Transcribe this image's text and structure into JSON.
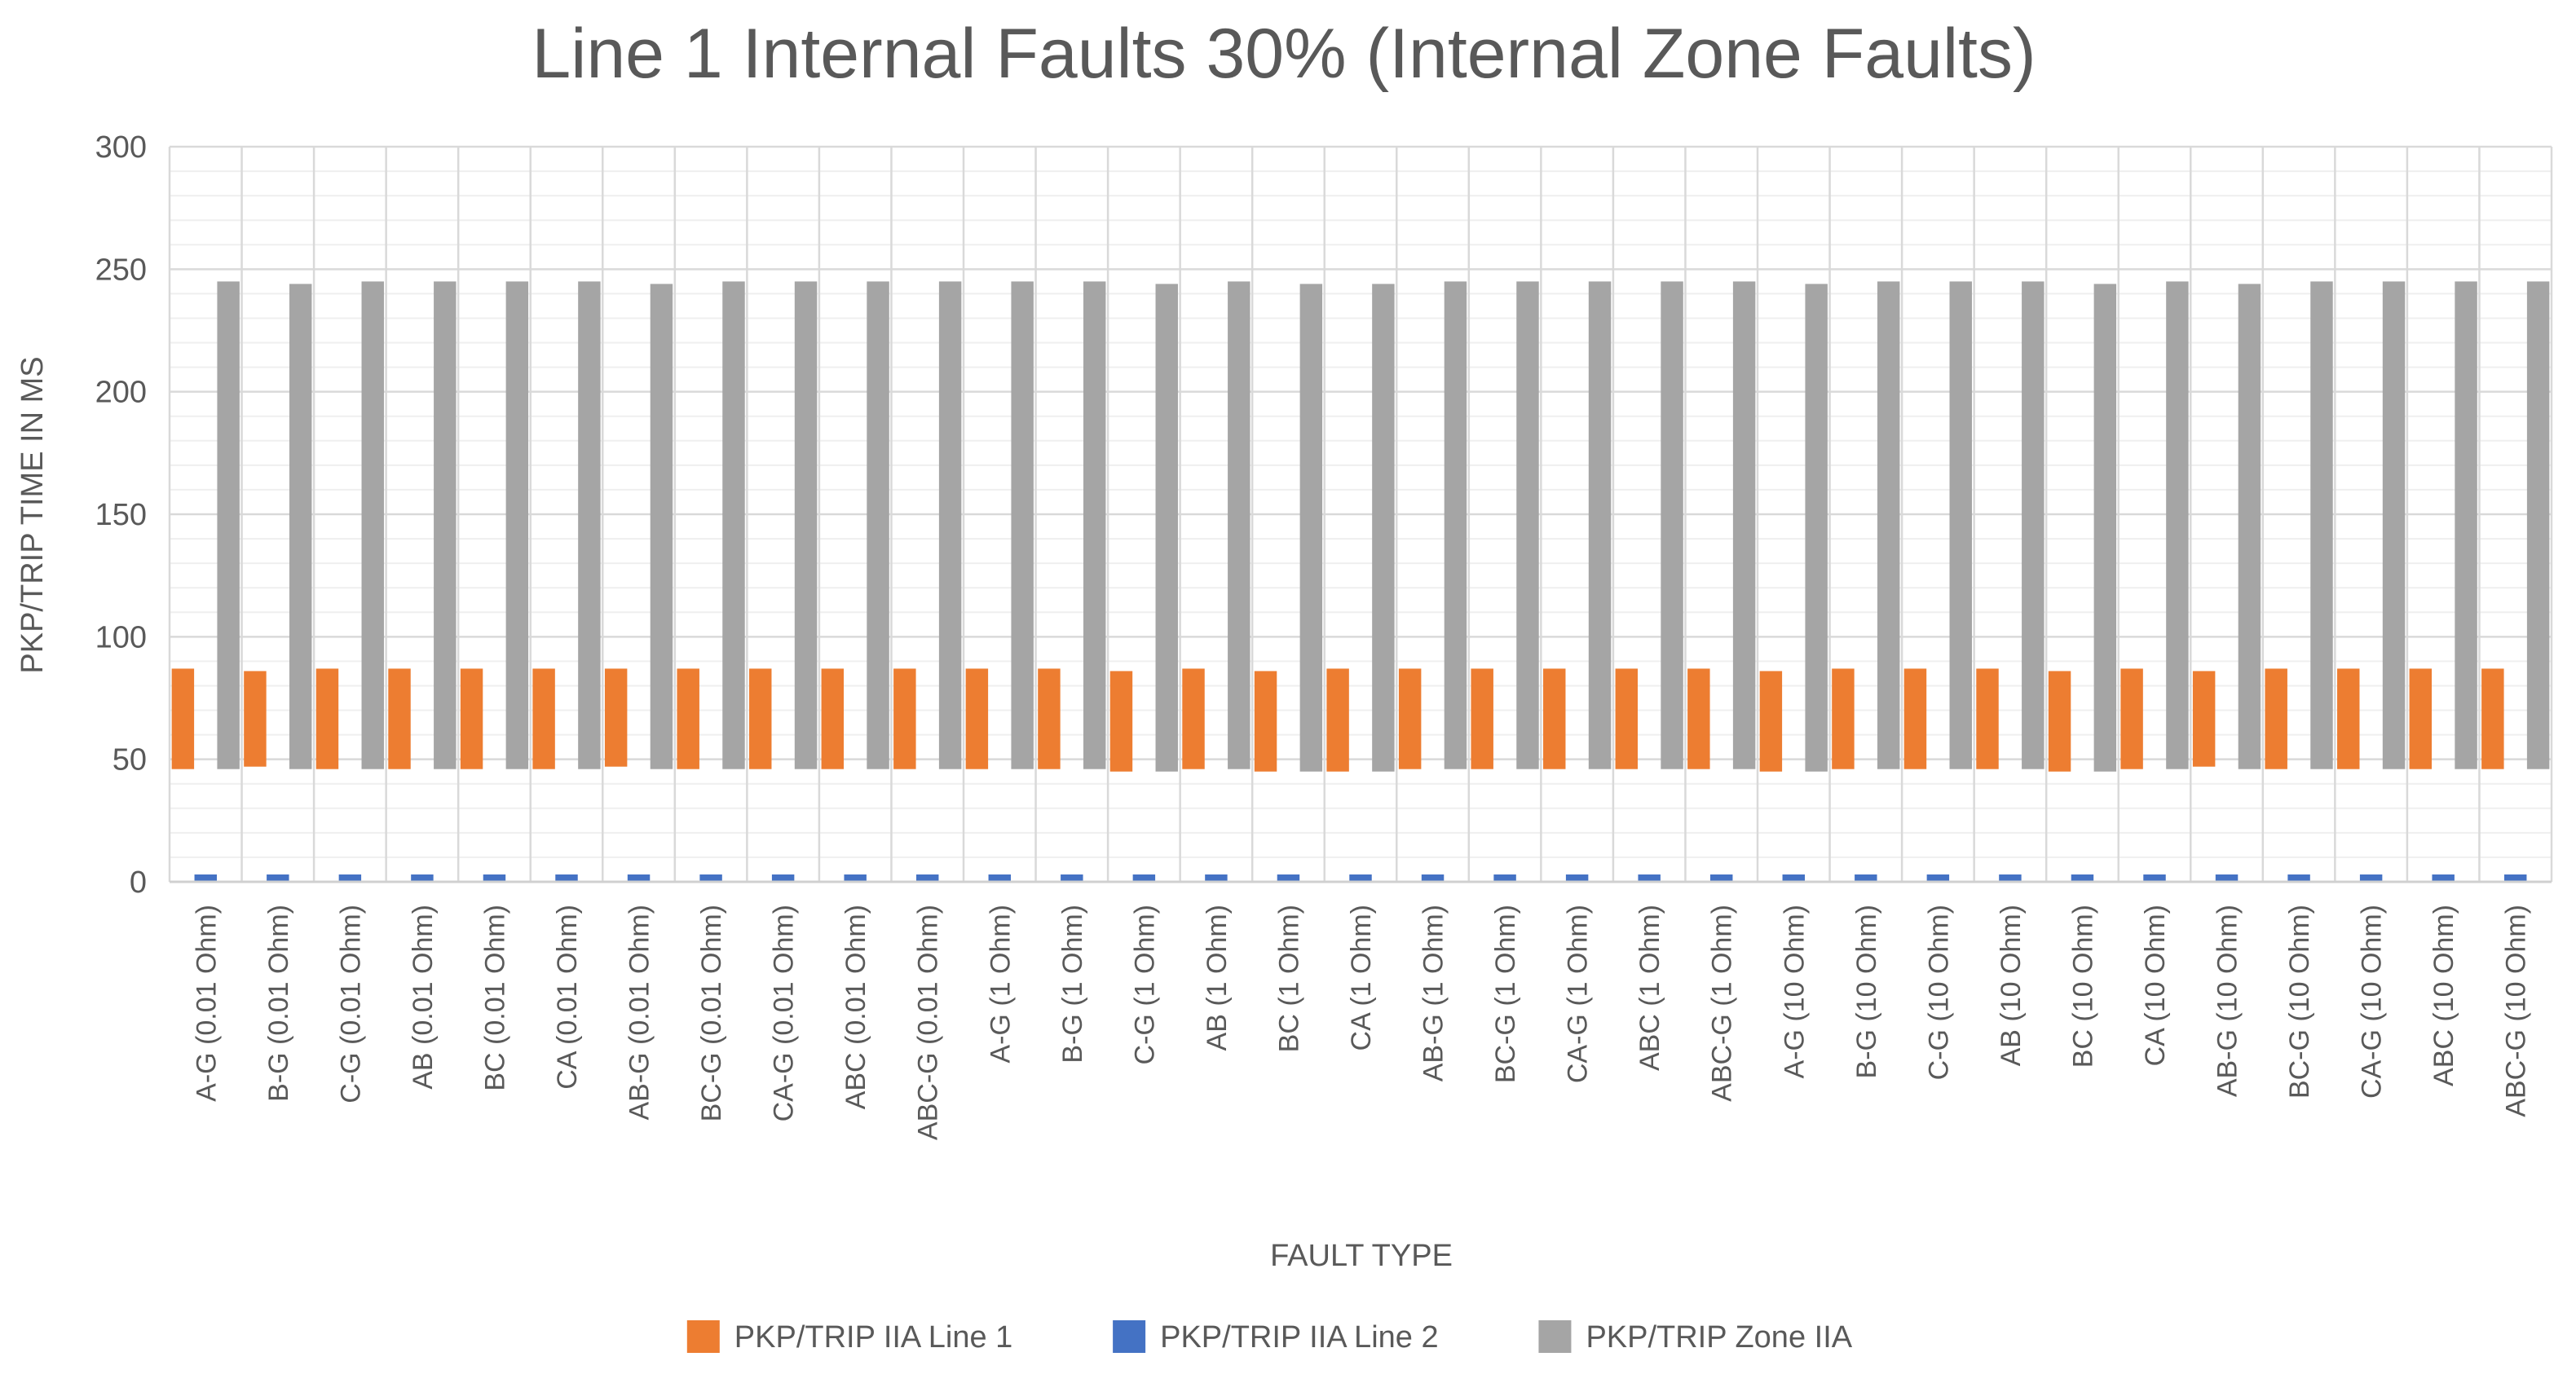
{
  "chart_data": {
    "type": "bar",
    "title": "Line 1 Internal Faults 30% (Internal Zone Faults)",
    "xlabel": "FAULT TYPE",
    "ylabel": "PKP/TRIP TIME IN MS",
    "ylim": [
      0,
      300
    ],
    "yticks": [
      0,
      50,
      100,
      150,
      200,
      250,
      300
    ],
    "grid": true,
    "legend_position": "bottom",
    "categories": [
      "A-G (0.01 Ohm)",
      "B-G (0.01 Ohm)",
      "C-G (0.01 Ohm)",
      "AB (0.01 Ohm)",
      "BC (0.01 Ohm)",
      "CA (0.01 Ohm)",
      "AB-G (0.01 Ohm)",
      "BC-G (0.01 Ohm)",
      "CA-G (0.01 Ohm)",
      "ABC (0.01 Ohm)",
      "ABC-G (0.01 Ohm)",
      "A-G (1 Ohm)",
      "B-G (1 Ohm)",
      "C-G (1 Ohm)",
      "AB (1 Ohm)",
      "BC (1 Ohm)",
      "CA (1 Ohm)",
      "AB-G (1 Ohm)",
      "BC-G (1 Ohm)",
      "CA-G (1 Ohm)",
      "ABC (1 Ohm)",
      "ABC-G (1 Ohm)",
      "A-G (10 Ohm)",
      "B-G (10 Ohm)",
      "C-G (10 Ohm)",
      "AB (10 Ohm)",
      "BC (10 Ohm)",
      "CA (10 Ohm)",
      "AB-G (10 Ohm)",
      "BC-G (10 Ohm)",
      "CA-G (10 Ohm)",
      "ABC (10 Ohm)",
      "ABC-G (10 Ohm)"
    ],
    "series": [
      {
        "name": "PKP/TRIP IIA Line 1",
        "color": "#ED7D31",
        "low": [
          46,
          47,
          46,
          46,
          46,
          46,
          47,
          46,
          46,
          46,
          46,
          46,
          46,
          45,
          46,
          45,
          45,
          46,
          46,
          46,
          46,
          46,
          45,
          46,
          46,
          46,
          45,
          46,
          47,
          46,
          46,
          46,
          46
        ],
        "high": [
          87,
          86,
          87,
          87,
          87,
          87,
          87,
          87,
          87,
          87,
          87,
          87,
          87,
          86,
          87,
          86,
          87,
          87,
          87,
          87,
          87,
          87,
          86,
          87,
          87,
          87,
          86,
          87,
          86,
          87,
          87,
          87,
          87
        ]
      },
      {
        "name": "PKP/TRIP IIA Line 2",
        "color": "#4472C4",
        "values": [
          3,
          3,
          3,
          3,
          3,
          3,
          3,
          3,
          3,
          3,
          3,
          3,
          3,
          3,
          3,
          3,
          3,
          3,
          3,
          3,
          3,
          3,
          3,
          3,
          3,
          3,
          3,
          3,
          3,
          3,
          3,
          3,
          3
        ]
      },
      {
        "name": "PKP/TRIP Zone IIA",
        "color": "#A5A5A5",
        "low": [
          46,
          46,
          46,
          46,
          46,
          46,
          46,
          46,
          46,
          46,
          46,
          46,
          46,
          45,
          46,
          45,
          45,
          46,
          46,
          46,
          46,
          46,
          45,
          46,
          46,
          46,
          45,
          46,
          46,
          46,
          46,
          46,
          46
        ],
        "high": [
          245,
          244,
          245,
          245,
          245,
          245,
          244,
          245,
          245,
          245,
          245,
          245,
          245,
          244,
          245,
          244,
          244,
          245,
          245,
          245,
          245,
          245,
          244,
          245,
          245,
          245,
          244,
          245,
          244,
          245,
          245,
          245,
          245
        ]
      }
    ]
  }
}
